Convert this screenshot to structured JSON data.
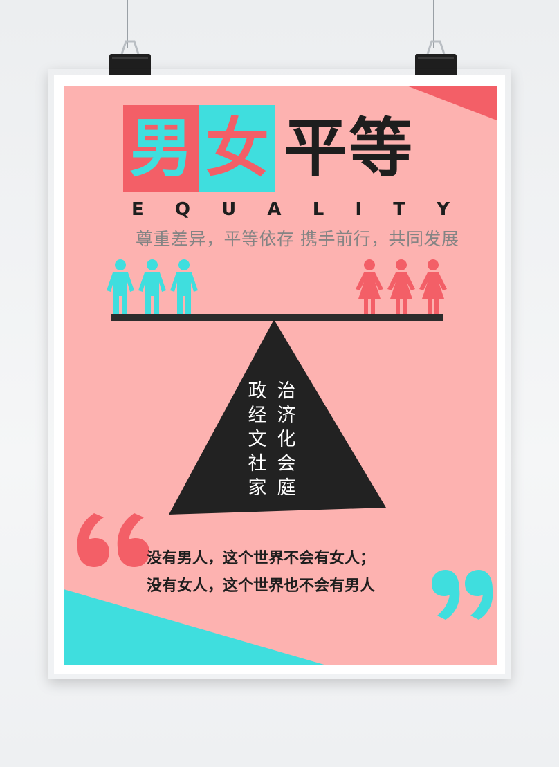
{
  "colors": {
    "background": "#fdb2b0",
    "accent_red": "#f35f67",
    "accent_teal": "#3fdede",
    "dark": "#1e1e1e",
    "gray_text": "#848484"
  },
  "title": {
    "char1": "男",
    "char2": "女",
    "rest": "平等"
  },
  "subtitle_letters": [
    "E",
    "Q",
    "U",
    "A",
    "L",
    "I",
    "T",
    "Y"
  ],
  "slogan": "尊重差异，平等依存   携手前行，共同发展",
  "illustration": {
    "left_group_icon": "man-figure-icon",
    "right_group_icon": "woman-figure-icon",
    "column_right": [
      "治",
      "济",
      "化",
      "会",
      "庭"
    ],
    "column_left": [
      "政",
      "经",
      "文",
      "社",
      "家"
    ]
  },
  "quote": {
    "line1": "没有男人，这个世界不会有女人；",
    "line2": "没有女人，这个世界也不会有男人",
    "open_icon": "open-quote-icon",
    "close_icon": "close-quote-icon"
  }
}
